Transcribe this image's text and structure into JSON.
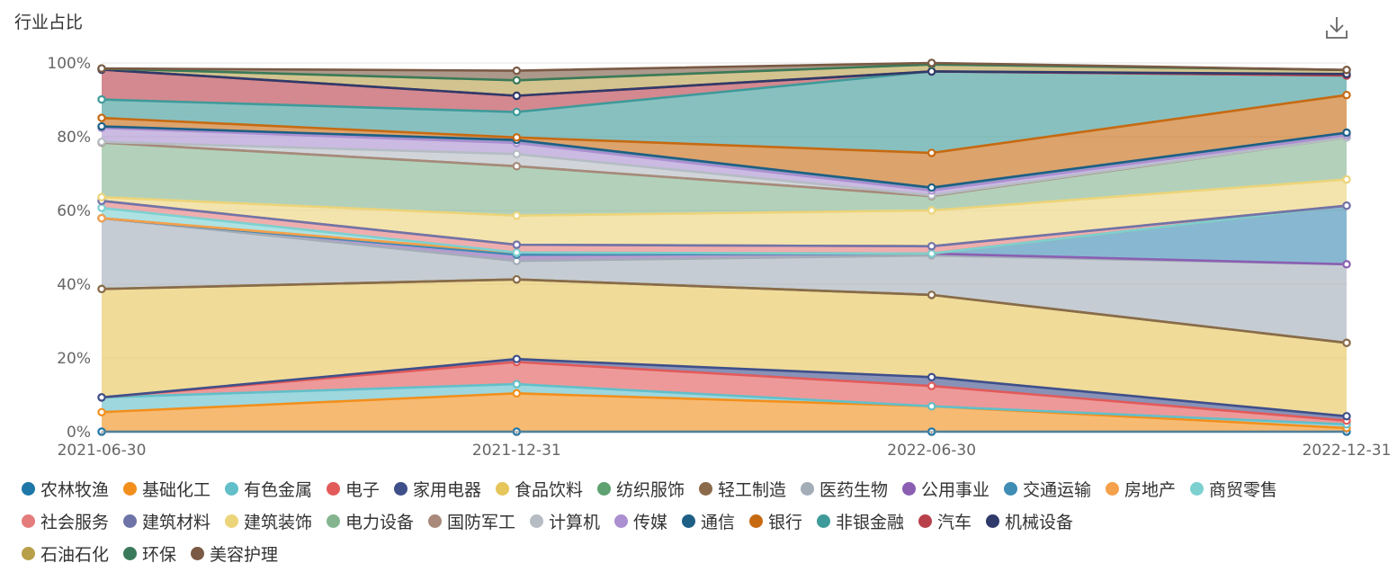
{
  "header": {
    "title": "行业占比",
    "download_icon": "download-icon"
  },
  "chart_data": {
    "type": "area",
    "stacked": true,
    "title": "行业占比",
    "categories": [
      "2021-06-30",
      "2021-12-31",
      "2022-06-30",
      "2022-12-31"
    ],
    "ylim": [
      0,
      100
    ],
    "y_ticks": [
      "0%",
      "20%",
      "40%",
      "60%",
      "80%",
      "100%"
    ],
    "legend_position": "bottom",
    "series": [
      {
        "name": "农林牧渔",
        "color": "#1f77a8",
        "values": [
          0,
          0,
          0,
          0
        ]
      },
      {
        "name": "基础化工",
        "color": "#f28f1c",
        "values": [
          5.3,
          10.4,
          6.9,
          1.0
        ]
      },
      {
        "name": "有色金属",
        "color": "#62bfc9",
        "values": [
          4.0,
          2.5,
          0.0,
          1.0
        ]
      },
      {
        "name": "电子",
        "color": "#e25a5a",
        "values": [
          0.0,
          6.0,
          5.5,
          1.0
        ]
      },
      {
        "name": "家用电器",
        "color": "#3f4f8a",
        "values": [
          0.0,
          0.8,
          2.4,
          1.2
        ]
      },
      {
        "name": "食品饮料",
        "color": "#e6c55a",
        "values": [
          29.4,
          21.6,
          22.3,
          19.9
        ]
      },
      {
        "name": "纺织服饰",
        "color": "#5fa171",
        "values": [
          0,
          0,
          0,
          0
        ]
      },
      {
        "name": "轻工制造",
        "color": "#8a6a4a",
        "values": [
          0,
          0,
          0,
          0
        ]
      },
      {
        "name": "医药生物",
        "color": "#a3adb8",
        "values": [
          19.2,
          5.0,
          10.7,
          21.3
        ]
      },
      {
        "name": "公用事业",
        "color": "#8a5fb2",
        "values": [
          0,
          1.7,
          0.5,
          0
        ]
      },
      {
        "name": "交通运输",
        "color": "#3f8cb5",
        "values": [
          0,
          0,
          0,
          15.9
        ]
      },
      {
        "name": "房地产",
        "color": "#f5a04a",
        "values": [
          0,
          0.6,
          0,
          0
        ]
      },
      {
        "name": "商贸零售",
        "color": "#7dd0d0",
        "values": [
          2.8,
          0,
          0,
          0
        ]
      },
      {
        "name": "社会服务",
        "color": "#e57c7c",
        "values": [
          1.9,
          2.1,
          2.0,
          0
        ]
      },
      {
        "name": "建筑材料",
        "color": "#6f74a8",
        "values": [
          0,
          0,
          0,
          0
        ]
      },
      {
        "name": "建筑装饰",
        "color": "#ecd47a",
        "values": [
          1.0,
          7.9,
          9.7,
          7.1
        ]
      },
      {
        "name": "电力设备",
        "color": "#84b58f",
        "values": [
          14.8,
          13.4,
          3.9,
          11.4
        ]
      },
      {
        "name": "国防军工",
        "color": "#a8897a",
        "values": [
          0,
          0,
          0,
          0
        ]
      },
      {
        "name": "计算机",
        "color": "#b5bcc4",
        "values": [
          0.2,
          3.3,
          0.2,
          0
        ]
      },
      {
        "name": "传媒",
        "color": "#ab8fd0",
        "values": [
          3.8,
          3.0,
          1.3,
          0.6
        ]
      },
      {
        "name": "通信",
        "color": "#1d5f85",
        "values": [
          0.4,
          0.8,
          0.8,
          0.7
        ]
      },
      {
        "name": "银行",
        "color": "#c66a12",
        "values": [
          2.3,
          0.7,
          9.4,
          10.2
        ]
      },
      {
        "name": "非银金融",
        "color": "#3f9a9a",
        "values": [
          5.0,
          6.9,
          22.1,
          5.3
        ]
      },
      {
        "name": "汽车",
        "color": "#b8404a",
        "values": [
          8.1,
          4.4,
          0,
          0
        ]
      },
      {
        "name": "机械设备",
        "color": "#2f3a6a",
        "values": [
          0,
          0,
          0,
          0.4
        ]
      },
      {
        "name": "石油石化",
        "color": "#b8a04a",
        "values": [
          0.3,
          4.2,
          1.9,
          1.1
        ]
      },
      {
        "name": "环保",
        "color": "#3a7a5a",
        "values": [
          0,
          0,
          0,
          0
        ]
      },
      {
        "name": "美容护理",
        "color": "#7a5a44",
        "values": [
          0,
          2.6,
          0.4,
          0
        ]
      }
    ]
  }
}
